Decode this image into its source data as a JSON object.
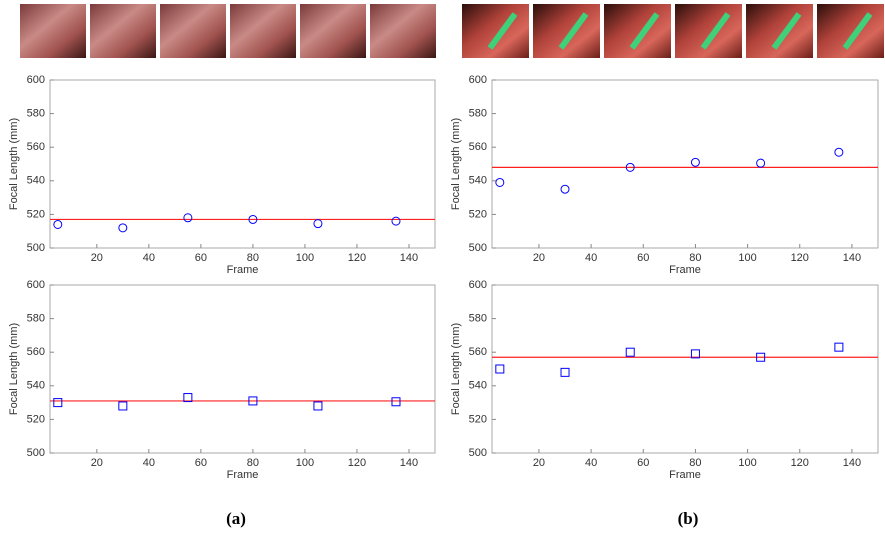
{
  "captions": [
    "(a)",
    "(b)"
  ],
  "chart_data": [
    {
      "type": "scatter",
      "marker": "circle",
      "color": "#0000ff",
      "line_color": "#ff2020",
      "reference": 517,
      "x_label": "Frame",
      "y_label": "Focal Length (mm)",
      "x": [
        5,
        30,
        55,
        80,
        105,
        135
      ],
      "values": [
        514,
        512,
        518,
        517,
        514.5,
        516
      ],
      "xlim": [
        2,
        150
      ],
      "ylim": [
        500,
        600
      ],
      "xticks": [
        20,
        40,
        60,
        80,
        100,
        120,
        140
      ],
      "yticks": [
        500,
        520,
        540,
        560,
        580,
        600
      ]
    },
    {
      "type": "scatter",
      "marker": "square",
      "color": "#0000ff",
      "line_color": "#ff2020",
      "reference": 531,
      "x_label": "Frame",
      "y_label": "Focal Length (mm)",
      "x": [
        5,
        30,
        55,
        80,
        105,
        135
      ],
      "values": [
        530,
        528,
        533,
        531,
        528,
        530.5
      ],
      "xlim": [
        2,
        150
      ],
      "ylim": [
        500,
        600
      ],
      "xticks": [
        20,
        40,
        60,
        80,
        100,
        120,
        140
      ],
      "yticks": [
        500,
        520,
        540,
        560,
        580,
        600
      ]
    },
    {
      "type": "scatter",
      "marker": "circle",
      "color": "#0000ff",
      "line_color": "#ff2020",
      "reference": 548,
      "x_label": "Frame",
      "y_label": "Focal Length (mm)",
      "x": [
        5,
        30,
        55,
        80,
        105,
        135
      ],
      "values": [
        539,
        535,
        548,
        551,
        550.5,
        557
      ],
      "xlim": [
        2,
        150
      ],
      "ylim": [
        500,
        600
      ],
      "xticks": [
        20,
        40,
        60,
        80,
        100,
        120,
        140
      ],
      "yticks": [
        500,
        520,
        540,
        560,
        580,
        600
      ]
    },
    {
      "type": "scatter",
      "marker": "square",
      "color": "#0000ff",
      "line_color": "#ff2020",
      "reference": 557,
      "x_label": "Frame",
      "y_label": "Focal Length (mm)",
      "x": [
        5,
        30,
        55,
        80,
        105,
        135
      ],
      "values": [
        550,
        548,
        560,
        559,
        557,
        563
      ],
      "xlim": [
        2,
        150
      ],
      "ylim": [
        500,
        600
      ],
      "xticks": [
        20,
        40,
        60,
        80,
        100,
        120,
        140
      ],
      "yticks": [
        500,
        520,
        540,
        560,
        580,
        600
      ]
    }
  ]
}
